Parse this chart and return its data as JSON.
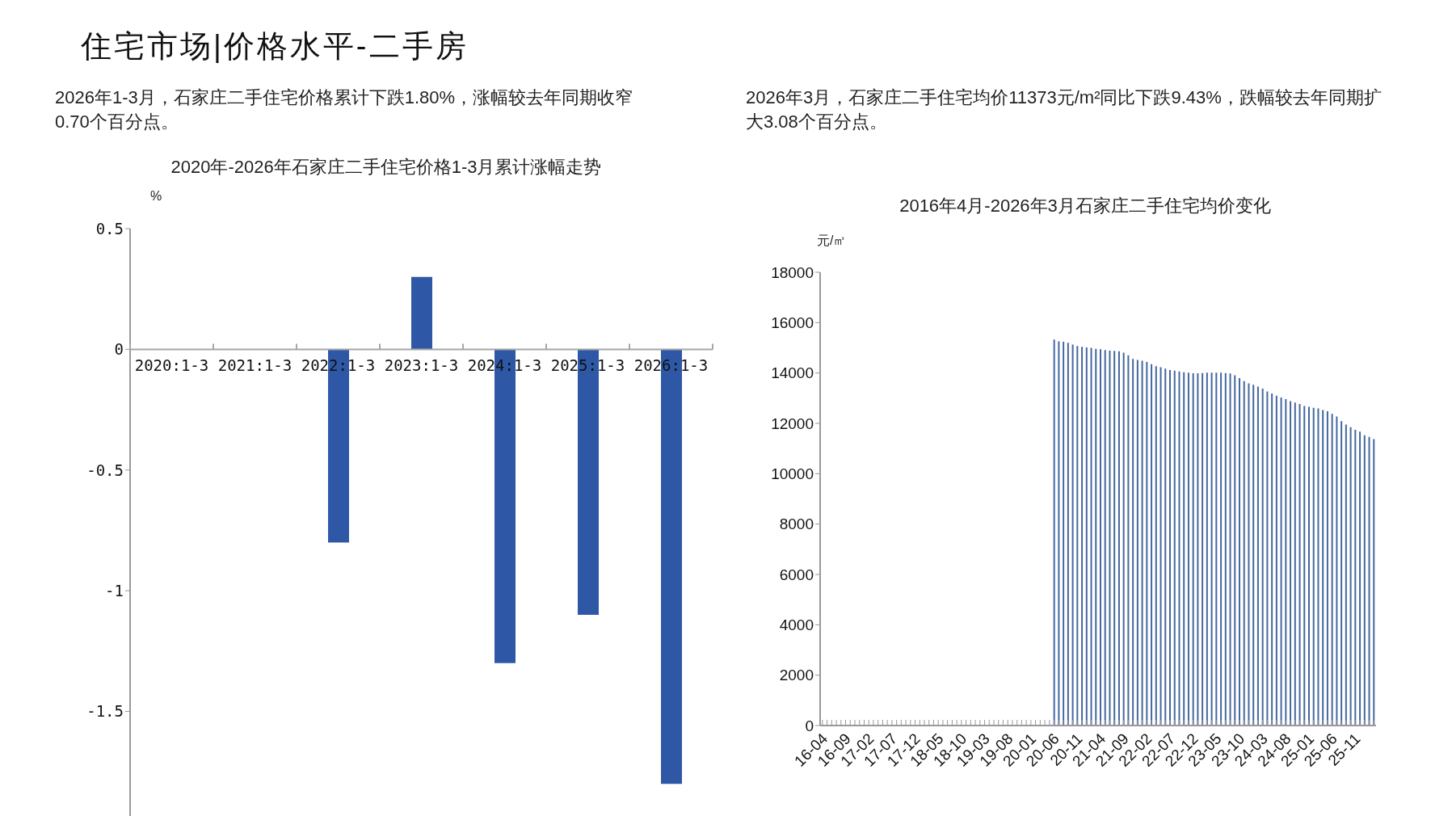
{
  "chart_data": [
    {
      "type": "bar",
      "title": "2020年-2026年石家庄二手住宅价格1-3月累计涨幅走势",
      "subtitle": "2026年1-3月，石家庄二手住宅价格累计下跌1.80%，涨幅较去年同期收窄0.70个百分点。",
      "annotations": [
        "住宅市场|价格水平-二手房"
      ],
      "ylabel": "%",
      "categories": [
        "2020:1-3",
        "2021:1-3",
        "2022:1-3",
        "2023:1-3",
        "2024:1-3",
        "2025:1-3",
        "2026:1-3"
      ],
      "values": [
        null,
        null,
        -0.8,
        0.3,
        -1.3,
        -1.1,
        -1.8
      ],
      "color": "#2e58a6",
      "ylim": [
        -1.95,
        0.5
      ],
      "yticks": [
        0.5,
        0,
        -0.5,
        -1,
        -1.5
      ]
    },
    {
      "type": "bar",
      "title": "2016年4月-2026年3月石家庄二手住宅均价变化",
      "subtitle": "2026年3月，石家庄二手住宅均价11373元/m²同比下跌9.43%，跌幅较去年同期扩大3.08个百分点。",
      "ylabel": "元/㎡",
      "categories": [
        "16-04",
        null,
        null,
        null,
        null,
        "16-09",
        null,
        null,
        null,
        null,
        "17-02",
        null,
        null,
        null,
        null,
        "17-07",
        null,
        null,
        null,
        null,
        "17-12",
        null,
        null,
        null,
        null,
        "18-05",
        null,
        null,
        null,
        null,
        "18-10",
        null,
        null,
        null,
        null,
        "19-03",
        null,
        null,
        null,
        null,
        "19-08",
        null,
        null,
        null,
        null,
        "20-01",
        null,
        null,
        null,
        null,
        "20-06",
        null,
        null,
        null,
        null,
        "20-11",
        null,
        null,
        null,
        null,
        "21-04",
        null,
        null,
        null,
        null,
        "21-09",
        null,
        null,
        null,
        null,
        "22-02",
        null,
        null,
        null,
        null,
        "22-07",
        null,
        null,
        null,
        null,
        "22-12",
        null,
        null,
        null,
        null,
        "23-05",
        null,
        null,
        null,
        null,
        "23-10",
        null,
        null,
        null,
        null,
        "24-03",
        null,
        null,
        null,
        null,
        "24-08",
        null,
        null,
        null,
        null,
        "25-01",
        null,
        null,
        null,
        null,
        "25-06",
        null,
        null,
        null,
        null,
        "25-11",
        null,
        null,
        null,
        null
      ],
      "values": [
        null,
        null,
        null,
        null,
        null,
        null,
        null,
        null,
        null,
        null,
        null,
        null,
        null,
        null,
        null,
        null,
        null,
        null,
        null,
        null,
        null,
        null,
        null,
        null,
        null,
        null,
        null,
        null,
        null,
        null,
        null,
        null,
        null,
        null,
        null,
        null,
        null,
        null,
        null,
        null,
        null,
        null,
        null,
        null,
        null,
        null,
        null,
        null,
        null,
        null,
        15330,
        15260,
        15240,
        15200,
        15130,
        15070,
        15040,
        15020,
        15000,
        14960,
        14940,
        14910,
        14890,
        14880,
        14860,
        14810,
        14700,
        14560,
        14520,
        14490,
        14440,
        14350,
        14270,
        14230,
        14170,
        14120,
        14090,
        14060,
        14030,
        14010,
        13990,
        13990,
        14000,
        14010,
        14010,
        14010,
        14010,
        14000,
        13980,
        13910,
        13800,
        13680,
        13590,
        13530,
        13460,
        13380,
        13270,
        13190,
        13100,
        13030,
        12960,
        12880,
        12830,
        12770,
        12690,
        12660,
        12620,
        12590,
        12530,
        12480,
        12380,
        12270,
        12090,
        11950,
        11850,
        11740,
        11670,
        11530,
        11460,
        11373
      ],
      "color": "#44679f",
      "ylim": [
        0,
        18000
      ],
      "yticks": [
        0,
        2000,
        4000,
        6000,
        8000,
        10000,
        12000,
        14000,
        16000,
        18000
      ]
    }
  ]
}
